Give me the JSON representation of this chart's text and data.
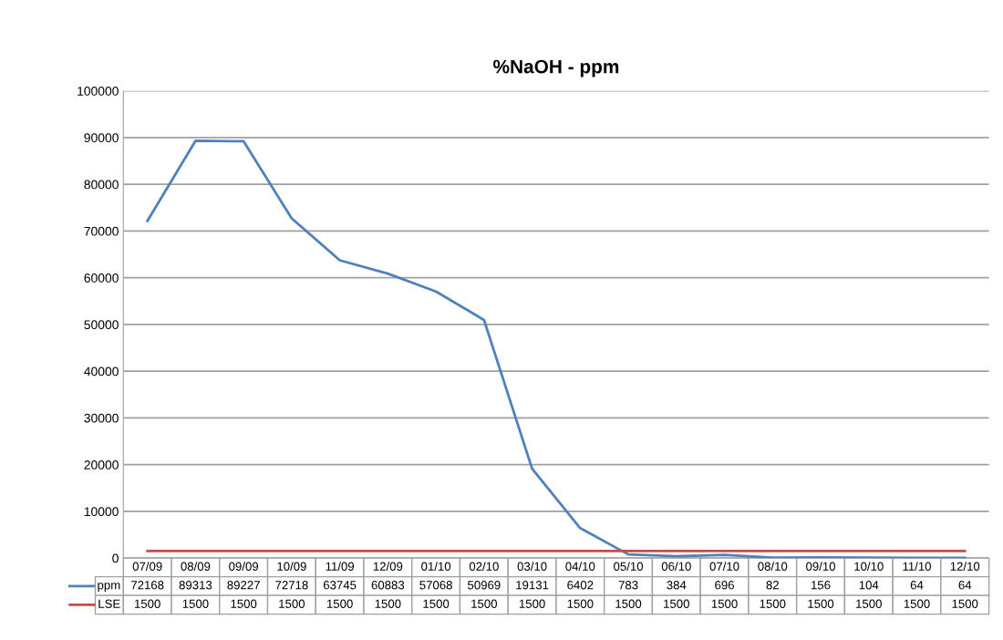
{
  "chart_data": {
    "type": "line",
    "title": "%NaOH - ppm",
    "categories": [
      "07/09",
      "08/09",
      "09/09",
      "10/09",
      "11/09",
      "12/09",
      "01/10",
      "02/10",
      "03/10",
      "04/10",
      "05/10",
      "06/10",
      "07/10",
      "08/10",
      "09/10",
      "10/10",
      "11/10",
      "12/10"
    ],
    "series": [
      {
        "name": "ppm",
        "color": "#4f81bd",
        "values": [
          72168,
          89313,
          89227,
          72718,
          63745,
          60883,
          57068,
          50969,
          19131,
          6402,
          783,
          384,
          696,
          82,
          156,
          104,
          64,
          64
        ]
      },
      {
        "name": "LSE",
        "color": "#c0504d",
        "values": [
          1500,
          1500,
          1500,
          1500,
          1500,
          1500,
          1500,
          1500,
          1500,
          1500,
          1500,
          1500,
          1500,
          1500,
          1500,
          1500,
          1500,
          1500
        ]
      }
    ],
    "ylim": [
      0,
      100000
    ],
    "yticks": [
      0,
      10000,
      20000,
      30000,
      40000,
      50000,
      60000,
      70000,
      80000,
      90000,
      100000
    ],
    "grid": "y",
    "data_labels": true,
    "legend": "bottom left",
    "marker": "none",
    "line_style": "solid"
  }
}
